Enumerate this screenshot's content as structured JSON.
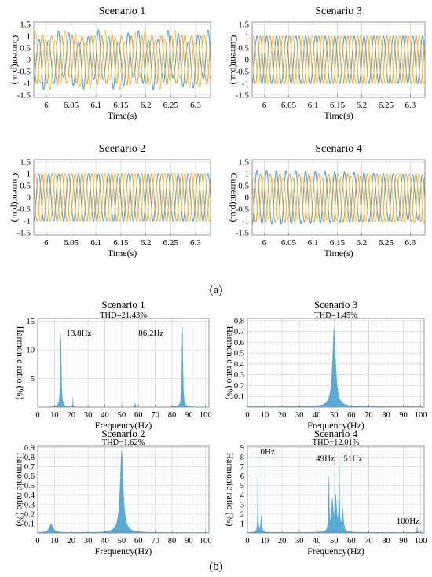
{
  "figure": {
    "labels": [
      "(a)",
      "(b)"
    ]
  },
  "colors": {
    "phase_a": "#4d9fd6",
    "phase_b": "#f0a030",
    "phase_c": "#e8c65a",
    "spectrum": "#5aaad6",
    "grid": "#d6d6d6",
    "axis": "#808080"
  },
  "chart_data": [
    {
      "type": "line",
      "title": "Scenario 1",
      "xlabel": "Time(s)",
      "ylabel": "Current(p.u.)",
      "xlim": [
        5.975,
        6.33
      ],
      "ylim": [
        -1.6,
        1.6
      ],
      "xticks": [
        6,
        6.05,
        6.1,
        6.15,
        6.2,
        6.25,
        6.3
      ],
      "yticks": [
        -1.5,
        -1,
        -0.5,
        0,
        0.5,
        1,
        1.5
      ],
      "xtick_labels": [
        "6",
        "6.05",
        "6.1",
        "6.15",
        "6.2",
        "6.25",
        "6.3"
      ],
      "ytick_labels": [
        "-1.5",
        "-1",
        "-0.5",
        "0",
        "0.5",
        "1",
        "1.5"
      ],
      "grid": true,
      "waveform": {
        "frequency_hz": 50,
        "amplitude": 1.0,
        "phases": 3,
        "harmonics": [
          {
            "freq": 13.8,
            "amp": 0.13
          },
          {
            "freq": 86.2,
            "amp": 0.14
          }
        ]
      }
    },
    {
      "type": "line",
      "title": "Scenario 3",
      "xlabel": "Time(s)",
      "ylabel": "Current(p.u.)",
      "xlim": [
        5.975,
        6.33
      ],
      "ylim": [
        -1.6,
        1.6
      ],
      "xticks": [
        6,
        6.05,
        6.1,
        6.15,
        6.2,
        6.25,
        6.3
      ],
      "yticks": [
        -1.5,
        -1,
        -0.5,
        0,
        0.5,
        1,
        1.5
      ],
      "xtick_labels": [
        "6",
        "6.05",
        "6.1",
        "6.15",
        "6.2",
        "6.25",
        "6.3"
      ],
      "ytick_labels": [
        "-1.5",
        "-1",
        "-0.5",
        "0",
        "0.5",
        "1",
        "1.5"
      ],
      "grid": true,
      "waveform": {
        "frequency_hz": 50,
        "amplitude": 1.0,
        "phases": 3,
        "harmonics": []
      }
    },
    {
      "type": "line",
      "title": "Scenario 2",
      "xlabel": "Time(s)",
      "ylabel": "Current(p.u.)",
      "xlim": [
        5.975,
        6.33
      ],
      "ylim": [
        -1.6,
        1.6
      ],
      "xticks": [
        6,
        6.05,
        6.1,
        6.15,
        6.2,
        6.25,
        6.3
      ],
      "yticks": [
        -1.5,
        -1,
        -0.5,
        0,
        0.5,
        1,
        1.5
      ],
      "xtick_labels": [
        "6",
        "6.05",
        "6.1",
        "6.15",
        "6.2",
        "6.25",
        "6.3"
      ],
      "ytick_labels": [
        "-1.5",
        "-1",
        "-0.5",
        "0",
        "0.5",
        "1",
        "1.5"
      ],
      "grid": true,
      "waveform": {
        "frequency_hz": 50,
        "amplitude": 1.0,
        "phases": 3,
        "harmonics": []
      }
    },
    {
      "type": "line",
      "title": "Scenario 4",
      "xlabel": "Time(s)",
      "ylabel": "Current(p.u.)",
      "xlim": [
        5.975,
        6.33
      ],
      "ylim": [
        -1.6,
        1.6
      ],
      "xticks": [
        6,
        6.05,
        6.1,
        6.15,
        6.2,
        6.25,
        6.3
      ],
      "yticks": [
        -1.5,
        -1,
        -0.5,
        0,
        0.5,
        1,
        1.5
      ],
      "xtick_labels": [
        "6",
        "6.05",
        "6.1",
        "6.15",
        "6.2",
        "6.25",
        "6.3"
      ],
      "ytick_labels": [
        "-1.5",
        "-1",
        "-0.5",
        "0",
        "0.5",
        "1",
        "1.5"
      ],
      "grid": true,
      "waveform": {
        "frequency_hz": 50,
        "amplitude": 1.0,
        "phases": 3,
        "harmonics": [
          {
            "freq": 100,
            "amp": 0.05
          },
          {
            "freq": 49,
            "amp": 0.06
          },
          {
            "freq": 51,
            "amp": 0.07
          }
        ]
      }
    },
    {
      "type": "bar",
      "title": "Scenario 1",
      "subtitle": "THD=21.43%",
      "xlabel": "Frequency(Hz)",
      "ylabel": "Harmonic ratio (%)",
      "xlim": [
        0,
        102
      ],
      "ylim": [
        0,
        15.5
      ],
      "xticks": [
        0,
        10,
        20,
        30,
        40,
        50,
        60,
        70,
        80,
        90,
        100
      ],
      "yticks": [
        5,
        10,
        15
      ],
      "xtick_labels": [
        "0",
        "10",
        "20",
        "30",
        "40",
        "50",
        "60",
        "70",
        "80",
        "90",
        "100"
      ],
      "ytick_labels": [
        "5",
        "10",
        "15"
      ],
      "grid": true,
      "peaks": [
        {
          "f": 13.8,
          "a": 12.8,
          "w": 0.35
        },
        {
          "f": 86.2,
          "a": 13.9,
          "w": 0.35
        },
        {
          "f": 21,
          "a": 1.8,
          "w": 0.12
        },
        {
          "f": 58,
          "a": 0.8,
          "w": 0.2
        }
      ],
      "floor": 0.05,
      "annotations": [
        {
          "text": "13.8Hz",
          "x": 17,
          "y": 12.5
        },
        {
          "text": "86.2Hz",
          "x": 60,
          "y": 12.5
        }
      ]
    },
    {
      "type": "bar",
      "title": "Scenario 3",
      "subtitle": "THD=1.45%",
      "xlabel": "Frequency(Hz)",
      "ylabel": "Harmonic ratio (%)",
      "xlim": [
        0,
        102
      ],
      "ylim": [
        0,
        0.82
      ],
      "xticks": [
        0,
        10,
        20,
        30,
        40,
        50,
        60,
        70,
        80,
        90,
        100
      ],
      "yticks": [
        0.1,
        0.2,
        0.3,
        0.4,
        0.5,
        0.6,
        0.7,
        0.8
      ],
      "xtick_labels": [
        "0",
        "10",
        "20",
        "30",
        "40",
        "50",
        "60",
        "70",
        "80",
        "90",
        "100"
      ],
      "ytick_labels": [
        "0.1",
        "0.2",
        "0.3",
        "0.4",
        "0.5",
        "0.6",
        "0.7",
        "0.8"
      ],
      "grid": true,
      "peaks": [
        {
          "f": 50,
          "a": 0.72,
          "w": 1.1
        }
      ],
      "floor": 0.006,
      "annotations": []
    },
    {
      "type": "bar",
      "title": "Scenario 2",
      "subtitle": "THD=1.62%",
      "xlabel": "Frequency(Hz)",
      "ylabel": "Harmonic ratio (%)",
      "xlim": [
        0,
        102
      ],
      "ylim": [
        0,
        0.92
      ],
      "xticks": [
        0,
        10,
        20,
        30,
        40,
        50,
        60,
        70,
        80,
        90,
        100
      ],
      "yticks": [
        0.1,
        0.2,
        0.3,
        0.4,
        0.5,
        0.6,
        0.7,
        0.8,
        0.9
      ],
      "xtick_labels": [
        "0",
        "10",
        "20",
        "30",
        "40",
        "50",
        "60",
        "70",
        "80",
        "90",
        "100"
      ],
      "ytick_labels": [
        "0.1",
        "0.2",
        "0.3",
        "0.4",
        "0.5",
        "0.6",
        "0.7",
        "0.8",
        "0.9"
      ],
      "grid": true,
      "peaks": [
        {
          "f": 50,
          "a": 0.86,
          "w": 1.1
        },
        {
          "f": 8,
          "a": 0.09,
          "w": 1.3
        }
      ],
      "floor": 0.006,
      "annotations": []
    },
    {
      "type": "bar",
      "title": "Scenario 4",
      "subtitle": "THD=12.01%",
      "xlabel": "Frequency(Hz)",
      "ylabel": "Harmonic ratio (%)",
      "xlim": [
        0,
        102
      ],
      "ylim": [
        0,
        9.2
      ],
      "xticks": [
        0,
        10,
        20,
        30,
        40,
        50,
        60,
        70,
        80,
        90,
        100
      ],
      "yticks": [
        1,
        2,
        3,
        4,
        5,
        6,
        7,
        8,
        9
      ],
      "xtick_labels": [
        "0",
        "10",
        "20",
        "30",
        "40",
        "50",
        "60",
        "70",
        "80",
        "90",
        "100"
      ],
      "ytick_labels": [
        "1",
        "2",
        "3",
        "4",
        "5",
        "6",
        "7",
        "8",
        "9"
      ],
      "grid": true,
      "peaks": [
        {
          "f": 6,
          "a": 8.2,
          "w": 0.15
        },
        {
          "f": 8,
          "a": 1.7,
          "w": 0.4
        },
        {
          "f": 47,
          "a": 5.6,
          "w": 0.25
        },
        {
          "f": 49,
          "a": 3.2,
          "w": 0.6
        },
        {
          "f": 51,
          "a": 3.6,
          "w": 0.6
        },
        {
          "f": 53,
          "a": 7.4,
          "w": 0.25
        },
        {
          "f": 55,
          "a": 2.3,
          "w": 0.5
        },
        {
          "f": 98,
          "a": 0.6,
          "w": 0.2
        }
      ],
      "floor": 0.08,
      "annotations": [
        {
          "text": "0Hz",
          "x": 7.5,
          "y": 8.3
        },
        {
          "text": "49Hz",
          "x": 39.5,
          "y": 7.6
        },
        {
          "text": "51Hz",
          "x": 55.5,
          "y": 7.6
        },
        {
          "text": "100Hz",
          "x": 86,
          "y": 1.0
        }
      ]
    }
  ]
}
